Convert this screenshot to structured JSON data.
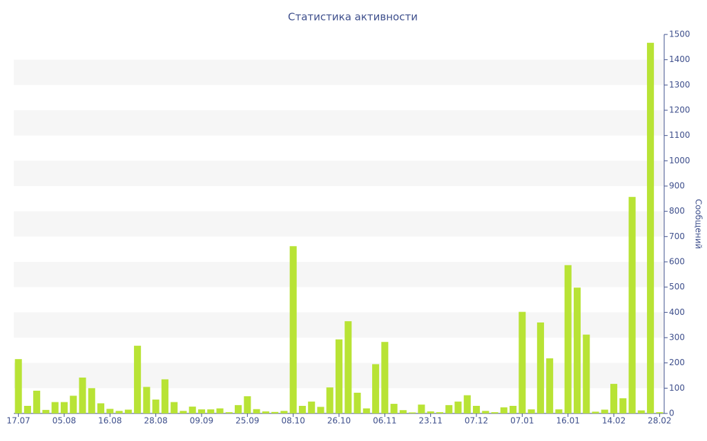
{
  "chart_data": {
    "type": "bar",
    "title": "Статистика активности",
    "y_label": "Сообщений",
    "categories": [
      "17.07",
      null,
      null,
      null,
      null,
      "05.08",
      null,
      null,
      null,
      null,
      "16.08",
      null,
      null,
      null,
      null,
      "28.08",
      null,
      null,
      null,
      null,
      "09.09",
      null,
      null,
      null,
      null,
      "25.09",
      null,
      null,
      null,
      null,
      "08.10",
      null,
      null,
      null,
      null,
      "26.10",
      null,
      null,
      null,
      null,
      "06.11",
      null,
      null,
      null,
      null,
      "23.11",
      null,
      null,
      null,
      null,
      "07.12",
      null,
      null,
      null,
      null,
      "07.01",
      null,
      null,
      null,
      null,
      "16.01",
      null,
      null,
      null,
      null,
      "14.02",
      null,
      null,
      null,
      null,
      "28.02"
    ],
    "values": [
      215,
      30,
      90,
      14,
      45,
      45,
      70,
      142,
      100,
      40,
      18,
      10,
      15,
      268,
      105,
      55,
      135,
      45,
      10,
      27,
      16,
      16,
      20,
      5,
      33,
      68,
      17,
      8,
      6,
      10,
      662,
      30,
      47,
      26,
      103,
      293,
      365,
      82,
      20,
      195,
      283,
      38,
      13,
      4,
      35,
      8,
      5,
      33,
      47,
      72,
      30,
      10,
      5,
      24,
      30,
      402,
      16,
      360,
      218,
      16,
      587,
      498,
      312,
      7,
      15,
      117,
      60,
      857,
      12,
      1467,
      5
    ],
    "color": "#b8e335",
    "ylim": [
      0,
      1500
    ],
    "yticks": [
      0,
      100,
      200,
      300,
      400,
      500,
      600,
      700,
      800,
      900,
      1000,
      1100,
      1200,
      1300,
      1400,
      1500
    ],
    "y_axis_side": "right",
    "grid_bands": true
  }
}
